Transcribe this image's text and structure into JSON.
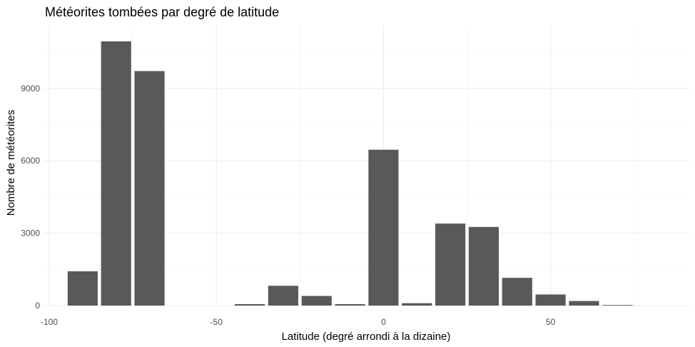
{
  "chart_data": {
    "type": "bar",
    "title": "Météorites tombées par degré de latitude",
    "xlabel": "Latitude (degré arrondi à la dizaine)",
    "ylabel": "Nombre de météorites",
    "x_ticks": [
      -100,
      -50,
      0,
      50
    ],
    "x_tick_labels": [
      "-100",
      "-50",
      "0",
      "50"
    ],
    "y_ticks": [
      0,
      3000,
      6000,
      9000
    ],
    "y_tick_labels": [
      "0",
      "3000",
      "6000",
      "9000"
    ],
    "xlim": [
      -101.5,
      91.5
    ],
    "ylim": [
      0,
      11600
    ],
    "grid": true,
    "bar_width": 9,
    "x": [
      -90,
      -80,
      -70,
      -40,
      -30,
      -20,
      -10,
      0,
      10,
      20,
      30,
      40,
      50,
      60,
      70
    ],
    "values": [
      1420,
      10950,
      9720,
      60,
      820,
      400,
      60,
      6460,
      100,
      3400,
      3260,
      1150,
      460,
      190,
      25
    ],
    "bar_color": "#595959"
  }
}
